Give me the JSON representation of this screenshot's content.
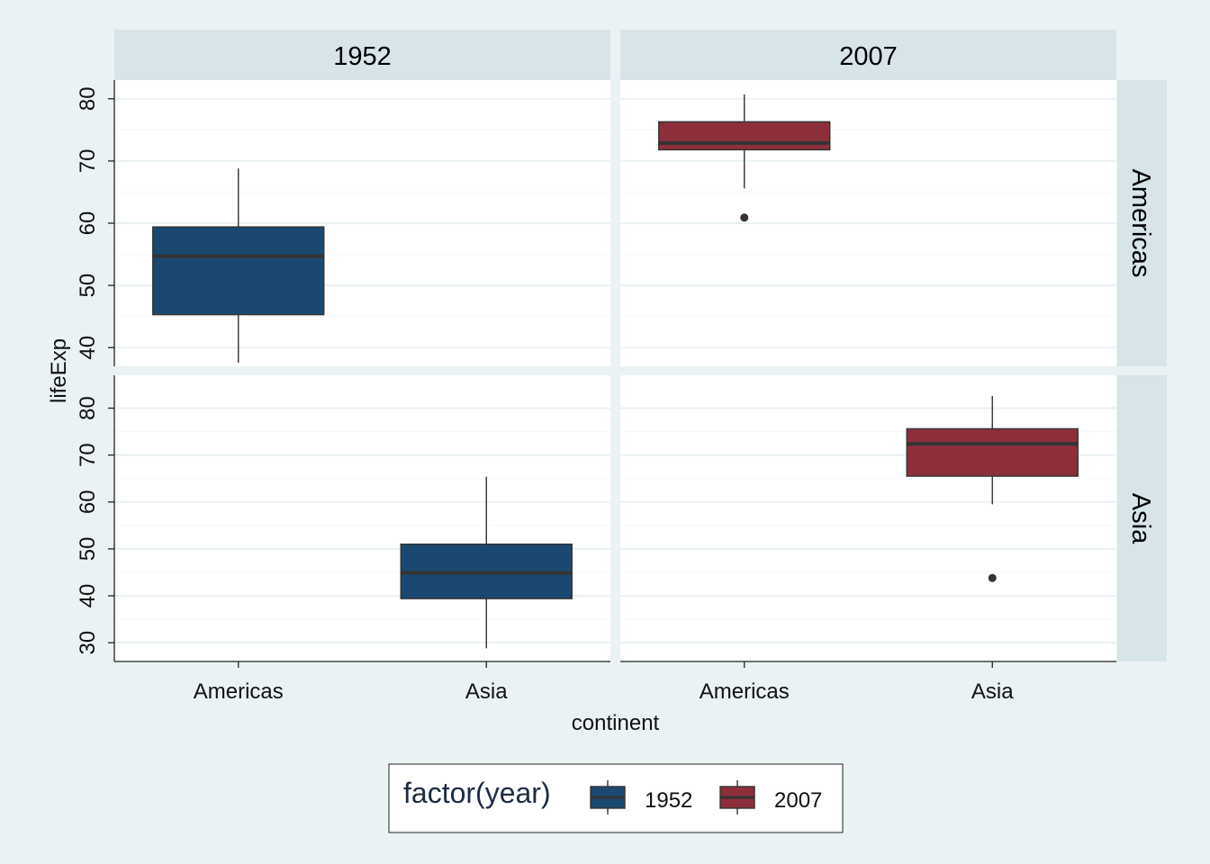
{
  "chart_data": {
    "type": "boxplot",
    "xlabel": "continent",
    "ylabel": "lifeExp",
    "facet_cols": [
      "1952",
      "2007"
    ],
    "facet_rows": [
      "Americas",
      "Asia"
    ],
    "categories": [
      "Americas",
      "Asia"
    ],
    "rows": [
      {
        "name": "Americas",
        "ylim": [
          37,
          83
        ],
        "yticks": [
          40,
          50,
          60,
          70,
          80
        ]
      },
      {
        "name": "Asia",
        "ylim": [
          26,
          87
        ],
        "yticks": [
          30,
          40,
          50,
          60,
          70,
          80
        ]
      }
    ],
    "legend": {
      "title": "factor(year)",
      "position": "bottom",
      "entries": [
        {
          "label": "1952",
          "color": "#1b4870"
        },
        {
          "label": "2007",
          "color": "#8d2f3b"
        }
      ]
    },
    "boxes": [
      {
        "year": "1952",
        "row": "Americas",
        "category": "Americas",
        "color": "#1b4870",
        "min": 37.6,
        "q1": 45.3,
        "median": 54.7,
        "q3": 59.4,
        "max": 68.8,
        "outliers": []
      },
      {
        "year": "2007",
        "row": "Americas",
        "category": "Americas",
        "color": "#8d2f3b",
        "min": 65.6,
        "q1": 71.8,
        "median": 72.9,
        "q3": 76.3,
        "max": 80.7,
        "outliers": [
          60.9
        ]
      },
      {
        "year": "1952",
        "row": "Asia",
        "category": "Asia",
        "color": "#1b4870",
        "min": 28.8,
        "q1": 39.4,
        "median": 44.9,
        "q3": 51.0,
        "max": 65.4,
        "outliers": []
      },
      {
        "year": "2007",
        "row": "Asia",
        "category": "Asia",
        "color": "#8d2f3b",
        "min": 59.5,
        "q1": 65.5,
        "median": 72.4,
        "q3": 75.6,
        "max": 82.6,
        "outliers": [
          43.8
        ]
      }
    ]
  }
}
